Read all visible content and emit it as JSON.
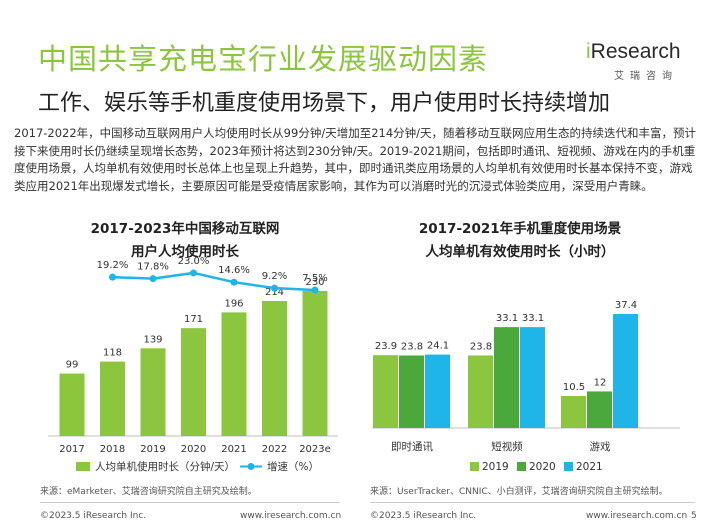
{
  "header": {
    "title": "中国共享充电宝行业发展驱动因素",
    "subtitle": "工作、娱乐等手机重度使用场景下，用户使用时长持续增加",
    "paragraph": "2017-2022年，中国移动互联网用户人均使用时长从99分钟/天增加至214分钟/天，随着移动互联网应用生态的持续迭代和丰富，预计接下来使用时长仍继续呈现增长态势，2023年预计将达到230分钟/天。2019-2021期间，包括即时通讯、短视频、游戏在内的手机重度使用场景，人均单机有效使用时长总体上也呈现上升趋势，其中，即时通讯类应用场景的人均单机有效使用时长基本保持不变，游戏类应用2021年出现爆发式增长，主要原因可能是受疫情居家影响，其作为可以消磨时光的沉浸式体验类应用，深受用户青睐。"
  },
  "logo": {
    "brand_i": "i",
    "brand_rest": "Research",
    "cn": "艾瑞咨询"
  },
  "chart_data": [
    {
      "type": "bar",
      "title_line1": "2017-2023年中国移动互联网",
      "title_line2": "用户人均使用时长",
      "categories": [
        "2017",
        "2018",
        "2019",
        "2020",
        "2021",
        "2022",
        "2023e"
      ],
      "series": [
        {
          "name": "人均单机使用时长（分钟/天）",
          "values": [
            99,
            118,
            139,
            171,
            196,
            214,
            230
          ],
          "color": "#8cc63f"
        }
      ],
      "line_series": {
        "name": "增速（%）",
        "values": [
          19.2,
          17.8,
          23.0,
          14.6,
          9.2,
          7.5
        ],
        "labels": [
          "19.2%",
          "17.8%",
          "23.0%",
          "14.6%",
          "9.2%",
          "7.5%"
        ],
        "color": "#1fb5e8"
      },
      "ylim": [
        0,
        260
      ]
    },
    {
      "type": "bar",
      "title_line1": "2017-2021年手机重度使用场景",
      "title_line2": "人均单机有效使用时长（小时）",
      "categories": [
        "即时通讯",
        "短视频",
        "游戏"
      ],
      "series": [
        {
          "name": "2019",
          "values": [
            23.9,
            23.8,
            10.5
          ],
          "color": "#8cc63f"
        },
        {
          "name": "2020",
          "values": [
            23.8,
            33.1,
            12.0
          ],
          "color": "#4ba83a"
        },
        {
          "name": "2021",
          "values": [
            24.1,
            33.1,
            37.4
          ],
          "color": "#1fb5e8"
        }
      ],
      "ylim": [
        0,
        42
      ]
    }
  ],
  "sources": {
    "left": "来源：eMarketer、艾瑞咨询研究院自主研究及绘制。",
    "right": "来源：UserTracker、CNNIC、小白测评，艾瑞咨询研究院自主研究绘制。"
  },
  "footer": {
    "copyright_left": "©2023.5 iResearch Inc.",
    "url_left": "www.iresearch.com.cn",
    "copyright_right": "©2023.5 iResearch Inc.",
    "url_right": "www.iresearch.com.cn",
    "page": "5"
  }
}
